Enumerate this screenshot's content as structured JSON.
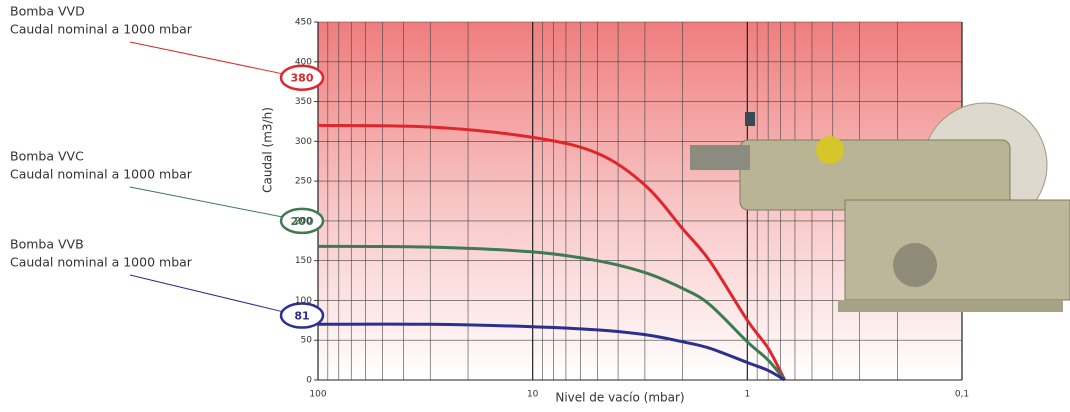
{
  "chart_data": {
    "type": "line",
    "x_label": "Nivel de vacío (mbar)",
    "y_label": "Caudal (m3/h)",
    "xscale": "log",
    "x_reversed": true,
    "grid": true,
    "xlim": [
      100,
      0.1
    ],
    "xticks": [
      100,
      10,
      1,
      {
        "value": 0.1,
        "label": "0,1"
      }
    ],
    "ylim": [
      0,
      450
    ],
    "yticks": [
      0,
      50,
      100,
      150,
      200,
      250,
      300,
      350,
      400,
      450
    ],
    "x": [
      100,
      30,
      10,
      5,
      3,
      2,
      1.5,
      1,
      0.8,
      0.67
    ],
    "series": [
      {
        "name": "Bomba VVD",
        "color": "#e0262b",
        "values": [
          320,
          318,
          305,
          285,
          245,
          190,
          150,
          75,
          40,
          0
        ]
      },
      {
        "name": "Bomba VVC",
        "color": "#3f7a52",
        "values": [
          168,
          167,
          161,
          150,
          135,
          115,
          95,
          48,
          25,
          0
        ]
      },
      {
        "name": "Bomba VVB",
        "color": "#2b2f8f",
        "values": [
          70,
          70,
          67,
          63,
          57,
          48,
          40,
          22,
          12,
          0
        ]
      }
    ],
    "annotations": [
      {
        "text": "Caudal nominal a 1000 mbar",
        "value": 380
      },
      {
        "text": "Caudal nominal a 1000 mbar",
        "value": 200
      },
      {
        "text": "Caudal nominal a 1000 mbar",
        "value": 81
      }
    ]
  }
}
